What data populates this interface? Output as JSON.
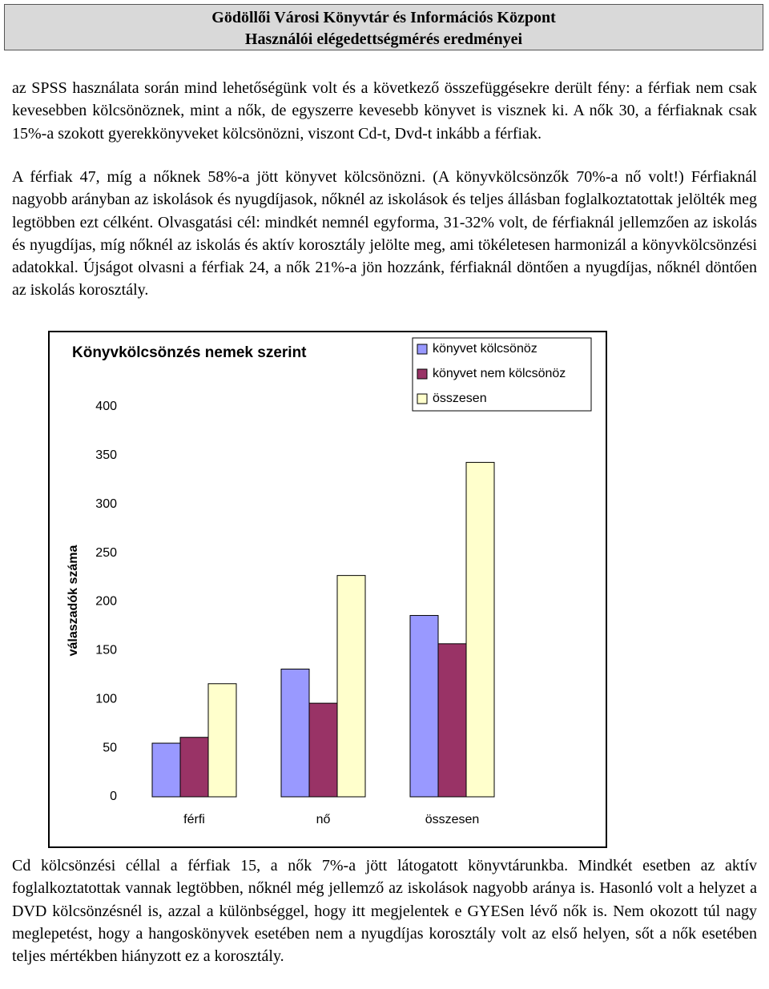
{
  "header": {
    "title": "Gödöllői Városi Könyvtár és Információs Központ",
    "subtitle": "Használói elégedettségmérés eredményei"
  },
  "paragraphs": [
    "az SPSS használata során mind lehetőségünk volt és a következő összefüggésekre derült fény: a férfiak nem csak kevesebben kölcsönöznek, mint a nők, de egyszerre kevesebb könyvet is visznek ki. A nők 30, a férfiaknak csak 15%-a szokott gyerekkönyveket kölcsönözni, viszont Cd-t, Dvd-t inkább a férfiak.",
    "A férfiak 47, míg a nőknek 58%-a jött könyvet kölcsönözni. (A könyvkölcsönzők 70%-a nő volt!) Férfiaknál nagyobb arányban az iskolások és nyugdíjasok, nőknél az iskolások és teljes állásban foglalkoztatottak jelölték meg legtöbben ezt célként. Olvasgatási cél: mindkét nemnél egyforma, 31-32% volt, de férfiaknál jellemzően az iskolás és nyugdíjas, míg nőknél az iskolás és aktív korosztály jelölte meg, ami tökéletesen harmonizál a könyvkölcsönzési adatokkal. Újságot olvasni a férfiak 24, a nők 21%-a jön hozzánk, férfiaknál döntően a nyugdíjas, nőknél döntően az iskolás korosztály.",
    "Cd kölcsönzési céllal a férfiak 15, a nők 7%-a jött látogatott könyvtárunkba. Mindkét esetben az aktív foglalkoztatottak vannak legtöbben, nőknél még jellemző az iskolások nagyobb aránya is. Hasonló volt a helyzet a DVD kölcsönzésnél is, azzal a különbséggel, hogy itt megjelentek e GYESen lévő nők is. Nem okozott túl nagy meglepetést, hogy a hangoskönyvek esetében nem a nyugdíjas korosztály volt az első helyen, sőt a nők esetében teljes mértékben hiányzott ez a korosztály."
  ],
  "chart_data": {
    "type": "bar",
    "title": "Könyvkölcsönzés nemek szerint",
    "y_label": "válaszadók száma",
    "categories": [
      "férfi",
      "nő",
      "összesen"
    ],
    "series": [
      {
        "name": "könyvet kölcsönöz",
        "color": "#9999ff",
        "values": [
          55,
          131,
          186
        ]
      },
      {
        "name": "könyvet nem kölcsönöz",
        "color": "#993366",
        "values": [
          61,
          96,
          157
        ]
      },
      {
        "name": "összesen",
        "color": "#ffffcc",
        "values": [
          116,
          227,
          343
        ]
      }
    ],
    "ylim": [
      0,
      400
    ],
    "yticks": [
      0,
      50,
      100,
      150,
      200,
      250,
      300,
      350,
      400
    ],
    "grid": false,
    "legend": "upper right"
  }
}
